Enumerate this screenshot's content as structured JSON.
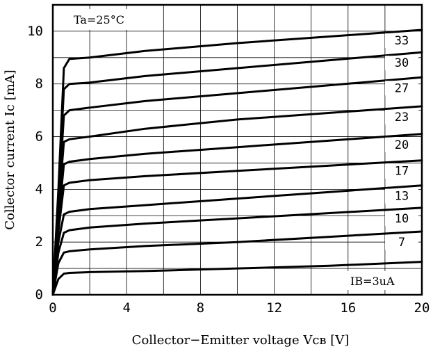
{
  "chart_data": {
    "type": "line",
    "title": "",
    "xlabel": "Collector−Emitter voltage Vcʙ [V]",
    "ylabel": "Collector current Ic [mA]",
    "xlim": [
      0,
      20
    ],
    "ylim": [
      0,
      11
    ],
    "x_ticks": [
      "0",
      "4",
      "8",
      "12",
      "16",
      "20"
    ],
    "y_ticks": [
      "0",
      "2",
      "4",
      "6",
      "8",
      "10"
    ],
    "x_tick_values": [
      0,
      4,
      8,
      12,
      16,
      20
    ],
    "y_tick_values": [
      0,
      2,
      4,
      6,
      8,
      10
    ],
    "grid": true,
    "annotations": {
      "condition": "Ta=25°C",
      "base_current_prefix": "IB",
      "base_current_value": "=3uA"
    },
    "series": [
      {
        "label": "33",
        "x": [
          0,
          0.3,
          0.6,
          0.9,
          2,
          5,
          10,
          15,
          20
        ],
        "y": [
          0,
          4.0,
          8.6,
          8.95,
          9.0,
          9.25,
          9.55,
          9.8,
          10.05
        ]
      },
      {
        "label": "30",
        "x": [
          0,
          0.3,
          0.6,
          0.9,
          2,
          5,
          10,
          15,
          20
        ],
        "y": [
          0,
          3.8,
          7.8,
          8.0,
          8.05,
          8.3,
          8.6,
          8.9,
          9.2
        ]
      },
      {
        "label": "27",
        "x": [
          0,
          0.3,
          0.6,
          0.9,
          2,
          5,
          10,
          15,
          20
        ],
        "y": [
          0,
          3.5,
          6.8,
          7.0,
          7.1,
          7.35,
          7.65,
          7.95,
          8.25
        ]
      },
      {
        "label": "23",
        "x": [
          0,
          0.3,
          0.6,
          0.9,
          2,
          5,
          10,
          15,
          20
        ],
        "y": [
          0,
          3.2,
          5.8,
          5.9,
          6.0,
          6.3,
          6.65,
          6.9,
          7.15
        ]
      },
      {
        "label": "20",
        "x": [
          0,
          0.3,
          0.6,
          0.9,
          2,
          5,
          10,
          15,
          20
        ],
        "y": [
          0,
          2.8,
          4.95,
          5.05,
          5.15,
          5.35,
          5.6,
          5.85,
          6.1
        ]
      },
      {
        "label": "17",
        "x": [
          0,
          0.3,
          0.6,
          0.9,
          2,
          5,
          10,
          15,
          20
        ],
        "y": [
          0,
          2.4,
          4.15,
          4.25,
          4.35,
          4.5,
          4.7,
          4.9,
          5.1
        ]
      },
      {
        "label": "13",
        "x": [
          0,
          0.3,
          0.6,
          0.9,
          2,
          5,
          10,
          15,
          20
        ],
        "y": [
          0,
          2.0,
          3.05,
          3.15,
          3.25,
          3.4,
          3.65,
          3.9,
          4.15
        ]
      },
      {
        "label": "10",
        "x": [
          0,
          0.3,
          0.6,
          0.9,
          2,
          5,
          10,
          15,
          20
        ],
        "y": [
          0,
          1.6,
          2.35,
          2.45,
          2.55,
          2.7,
          2.9,
          3.1,
          3.3
        ]
      },
      {
        "label": "7",
        "x": [
          0,
          0.3,
          0.6,
          0.9,
          2,
          5,
          10,
          15,
          20
        ],
        "y": [
          0,
          1.2,
          1.6,
          1.65,
          1.72,
          1.85,
          2.0,
          2.2,
          2.4
        ]
      },
      {
        "label": "3",
        "x": [
          0,
          0.3,
          0.6,
          0.9,
          2,
          5,
          10,
          15,
          20
        ],
        "y": [
          0,
          0.6,
          0.8,
          0.83,
          0.86,
          0.9,
          1.0,
          1.1,
          1.25
        ]
      }
    ]
  }
}
